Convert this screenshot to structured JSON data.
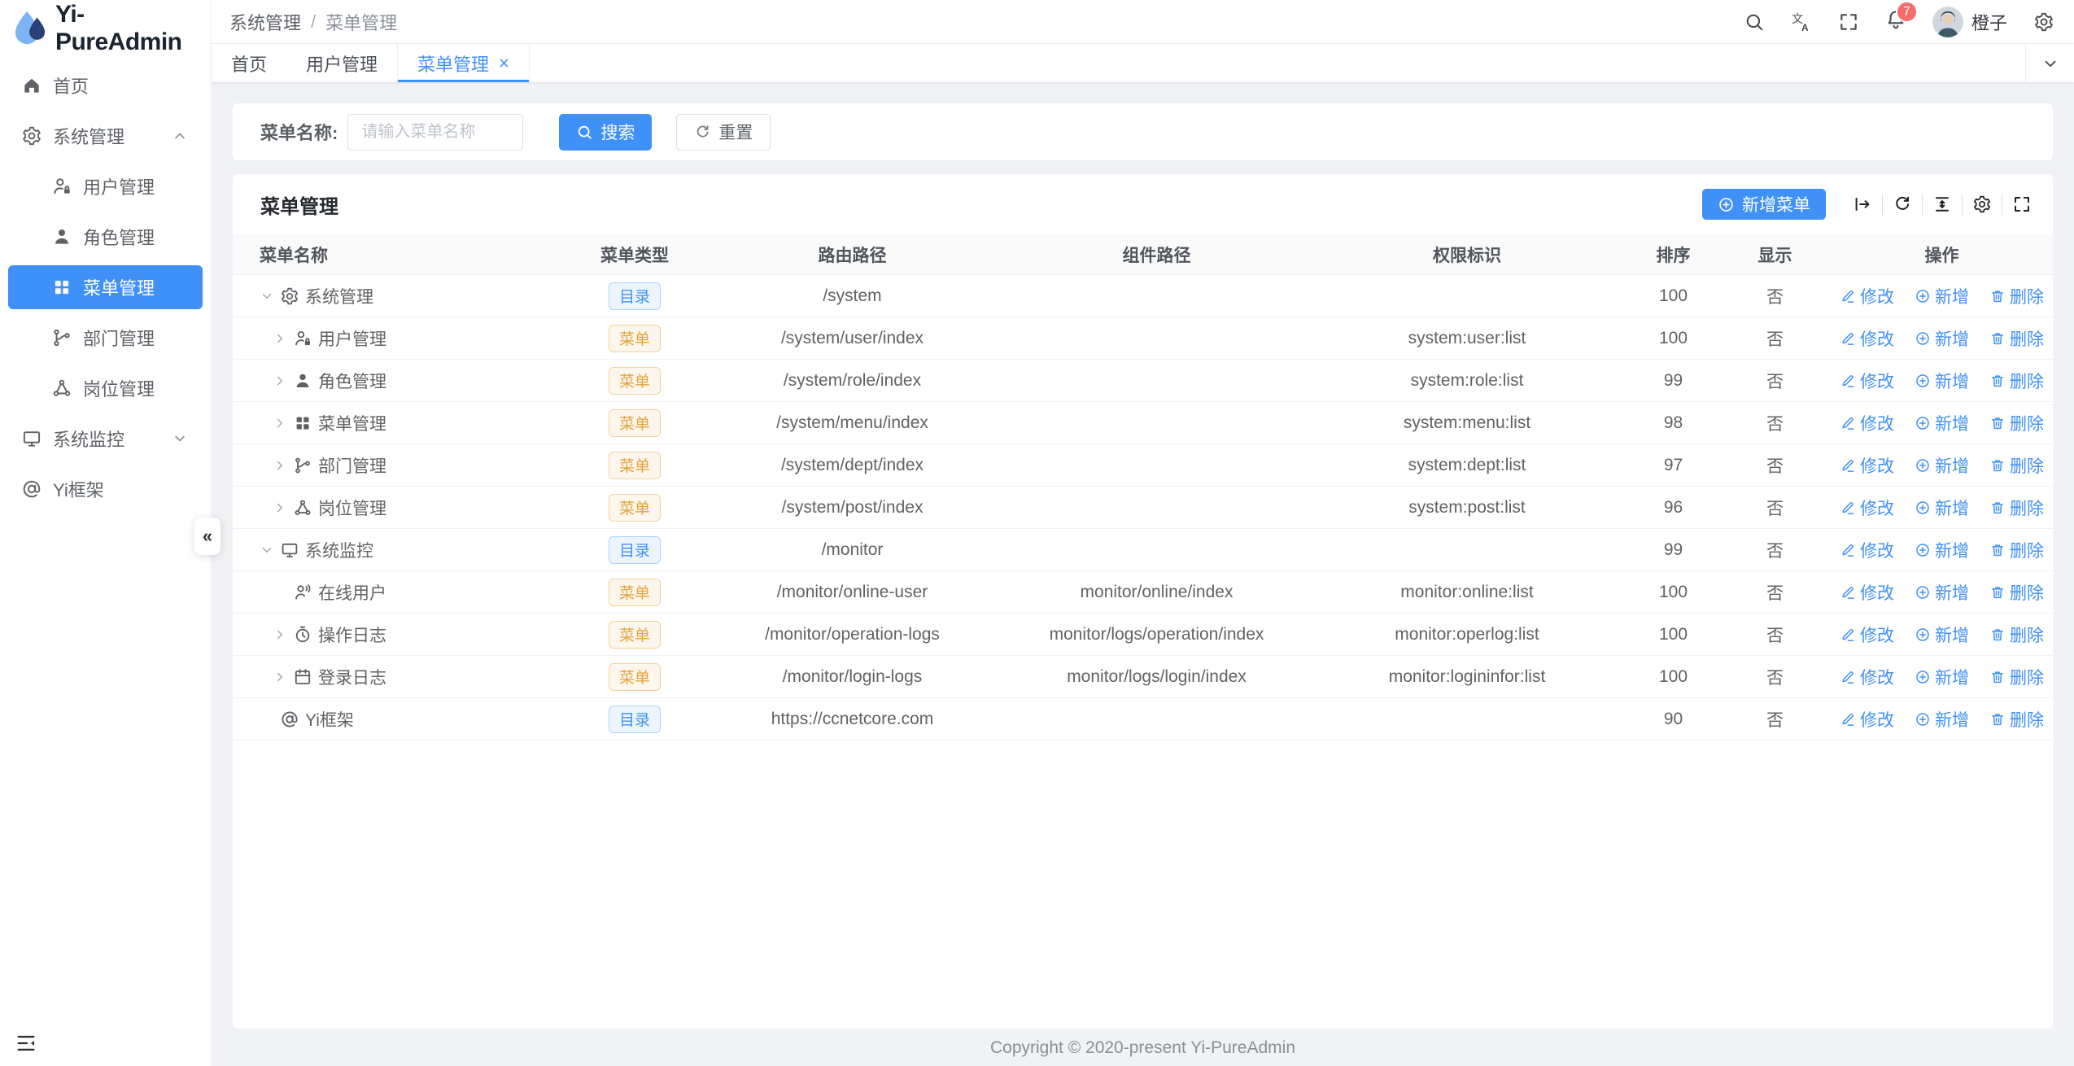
{
  "colors": {
    "primary": "#4091f7",
    "danger": "#f56c6c",
    "tag_dir": "#4091f7",
    "tag_menu": "#e6a23c"
  },
  "sidebar": {
    "logo_text": "Yi-PureAdmin",
    "items": [
      {
        "label": "首页",
        "icon": "home",
        "level": 0
      },
      {
        "label": "系统管理",
        "icon": "gear",
        "level": 0,
        "chevron": "up"
      },
      {
        "label": "用户管理",
        "icon": "user-lock",
        "level": 1
      },
      {
        "label": "角色管理",
        "icon": "user-fill",
        "level": 1
      },
      {
        "label": "菜单管理",
        "icon": "grid",
        "level": 1,
        "active": true
      },
      {
        "label": "部门管理",
        "icon": "dept",
        "level": 1
      },
      {
        "label": "岗位管理",
        "icon": "post",
        "level": 1
      },
      {
        "label": "系统监控",
        "icon": "monitor",
        "level": 0,
        "chevron": "down"
      },
      {
        "label": "Yi框架",
        "icon": "at",
        "level": 0
      }
    ],
    "collapse_glyph": "«"
  },
  "header": {
    "breadcrumb": {
      "first": "系统管理",
      "separator": "/",
      "last": "菜单管理"
    },
    "icons": [
      "search",
      "translate",
      "fullscreen",
      "bell",
      "settings"
    ],
    "notification_count": "7",
    "user_name": "橙子"
  },
  "tabs": [
    {
      "label": "首页"
    },
    {
      "label": "用户管理"
    },
    {
      "label": "菜单管理",
      "active": true,
      "close_glyph": "×"
    }
  ],
  "search": {
    "label": "菜单名称:",
    "placeholder": "请输入菜单名称",
    "search_label": "搜索",
    "reset_label": "重置"
  },
  "table_card": {
    "title": "菜单管理",
    "add_button_label": "新增菜单",
    "tool_icons": [
      "expand-all",
      "refresh",
      "density",
      "gear",
      "fullscreen"
    ]
  },
  "table": {
    "columns": [
      "菜单名称",
      "菜单类型",
      "路由路径",
      "组件路径",
      "权限标识",
      "排序",
      "显示",
      "操作"
    ],
    "type_labels": {
      "dir": "目录",
      "menu": "菜单"
    },
    "action_labels": {
      "edit": "修改",
      "add": "新增",
      "delete": "删除"
    },
    "rows": [
      {
        "name": "系统管理",
        "icon": "gear",
        "level": 0,
        "arrow": "down",
        "type": "dir",
        "route": "/system",
        "component": "",
        "perm": "",
        "sort": "100",
        "visible": "否"
      },
      {
        "name": "用户管理",
        "icon": "user-lock",
        "level": 1,
        "arrow": "right",
        "type": "menu",
        "route": "/system/user/index",
        "component": "",
        "perm": "system:user:list",
        "sort": "100",
        "visible": "否"
      },
      {
        "name": "角色管理",
        "icon": "user-fill",
        "level": 1,
        "arrow": "right",
        "type": "menu",
        "route": "/system/role/index",
        "component": "",
        "perm": "system:role:list",
        "sort": "99",
        "visible": "否"
      },
      {
        "name": "菜单管理",
        "icon": "grid",
        "level": 1,
        "arrow": "right",
        "type": "menu",
        "route": "/system/menu/index",
        "component": "",
        "perm": "system:menu:list",
        "sort": "98",
        "visible": "否"
      },
      {
        "name": "部门管理",
        "icon": "dept",
        "level": 1,
        "arrow": "right",
        "type": "menu",
        "route": "/system/dept/index",
        "component": "",
        "perm": "system:dept:list",
        "sort": "97",
        "visible": "否"
      },
      {
        "name": "岗位管理",
        "icon": "post",
        "level": 1,
        "arrow": "right",
        "type": "menu",
        "route": "/system/post/index",
        "component": "",
        "perm": "system:post:list",
        "sort": "96",
        "visible": "否"
      },
      {
        "name": "系统监控",
        "icon": "monitor",
        "level": 0,
        "arrow": "down",
        "type": "dir",
        "route": "/monitor",
        "component": "",
        "perm": "",
        "sort": "99",
        "visible": "否"
      },
      {
        "name": "在线用户",
        "icon": "online",
        "level": 1,
        "arrow": "none",
        "type": "menu",
        "route": "/monitor/online-user",
        "component": "monitor/online/index",
        "perm": "monitor:online:list",
        "sort": "100",
        "visible": "否"
      },
      {
        "name": "操作日志",
        "icon": "oplog",
        "level": 1,
        "arrow": "right",
        "type": "menu",
        "route": "/monitor/operation-logs",
        "component": "monitor/logs/operation/index",
        "perm": "monitor:operlog:list",
        "sort": "100",
        "visible": "否"
      },
      {
        "name": "登录日志",
        "icon": "loginlog",
        "level": 1,
        "arrow": "right",
        "type": "menu",
        "route": "/monitor/login-logs",
        "component": "monitor/logs/login/index",
        "perm": "monitor:logininfor:list",
        "sort": "100",
        "visible": "否"
      },
      {
        "name": "Yi框架",
        "icon": "at",
        "level": 0,
        "arrow": "none",
        "type": "dir",
        "route": "https://ccnetcore.com",
        "component": "",
        "perm": "",
        "sort": "90",
        "visible": "否"
      }
    ]
  },
  "footer": {
    "copyright": "Copyright © 2020-present Yi-PureAdmin"
  }
}
